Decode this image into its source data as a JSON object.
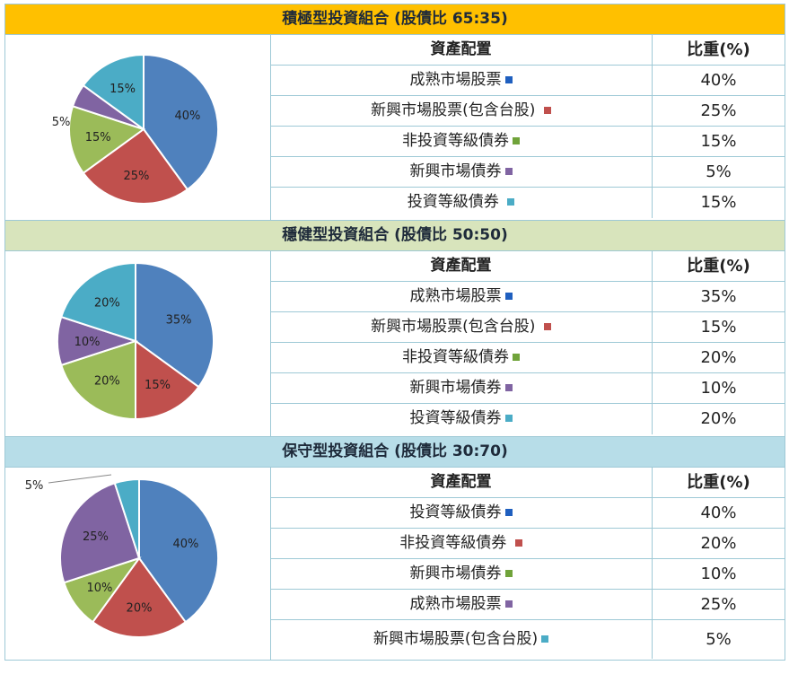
{
  "table_header": {
    "asset": "資產配置",
    "weight": "比重(%)"
  },
  "chart_data": [
    {
      "type": "pie",
      "title": "積極型投資組合 (股債比 65:35)",
      "band_color": "#ffc000",
      "categories": [
        "成熟市場股票",
        "新興市場股票(包含台股)",
        "非投資等級債券",
        "新興市場債券",
        "投資等級債券"
      ],
      "values": [
        40,
        25,
        15,
        5,
        15
      ],
      "value_labels": [
        "40%",
        "25%",
        "15%",
        "5%",
        "15%"
      ],
      "colors": [
        "#4f81bd",
        "#c0504d",
        "#9bbb59",
        "#8064a2",
        "#4bacc6"
      ],
      "rows": [
        {
          "name": "成熟市場股票",
          "marker": "#1f5fbf",
          "pct": "40%"
        },
        {
          "name": "新興市場股票(包含台股) ",
          "marker": "#c0504d",
          "pct": "25%"
        },
        {
          "name": "非投資等級債券",
          "marker": "#70a33a",
          "pct": "15%"
        },
        {
          "name": "新興市場債券",
          "marker": "#8064a2",
          "pct": "5%"
        },
        {
          "name": "投資等級債券 ",
          "marker": "#4bacc6",
          "pct": "15%"
        }
      ]
    },
    {
      "type": "pie",
      "title": "穩健型投資組合 (股債比 50:50)",
      "band_color": "#d8e4bc",
      "categories": [
        "成熟市場股票",
        "新興市場股票(包含台股)",
        "非投資等級債券",
        "新興市場債券",
        "投資等級債券"
      ],
      "values": [
        35,
        15,
        20,
        10,
        20
      ],
      "value_labels": [
        "35%",
        "15%",
        "20%",
        "10%",
        "20%"
      ],
      "colors": [
        "#4f81bd",
        "#c0504d",
        "#9bbb59",
        "#8064a2",
        "#4bacc6"
      ],
      "rows": [
        {
          "name": "成熟市場股票",
          "marker": "#1f5fbf",
          "pct": "35%"
        },
        {
          "name": "新興市場股票(包含台股)  ",
          "marker": "#c0504d",
          "pct": "15%"
        },
        {
          "name": "非投資等級債券",
          "marker": "#70a33a",
          "pct": "20%"
        },
        {
          "name": "新興市場債券",
          "marker": "#8064a2",
          "pct": "10%"
        },
        {
          "name": "投資等級債券",
          "marker": "#4bacc6",
          "pct": "20%"
        }
      ]
    },
    {
      "type": "pie",
      "title": "保守型投資組合 (股債比 30:70)",
      "band_color": "#b7dde8",
      "categories": [
        "投資等級債券",
        "非投資等級債券",
        "新興市場債券",
        "成熟市場股票",
        "新興市場股票(包含台股)"
      ],
      "values": [
        40,
        20,
        10,
        25,
        5
      ],
      "value_labels": [
        "40%",
        "20%",
        "10%",
        "25%",
        "5%"
      ],
      "colors": [
        "#4f81bd",
        "#c0504d",
        "#9bbb59",
        "#8064a2",
        "#4bacc6"
      ],
      "rows": [
        {
          "name": "投資等級債券",
          "marker": "#1f5fbf",
          "pct": "40%"
        },
        {
          "name": "非投資等級債券 ",
          "marker": "#c0504d",
          "pct": "20%"
        },
        {
          "name": "新興市場債券",
          "marker": "#70a33a",
          "pct": "10%"
        },
        {
          "name": "成熟市場股票",
          "marker": "#8064a2",
          "pct": "25%"
        },
        {
          "name": "新興市場股票(包含台股)",
          "marker": "#4bacc6",
          "pct": "5%"
        }
      ]
    }
  ]
}
